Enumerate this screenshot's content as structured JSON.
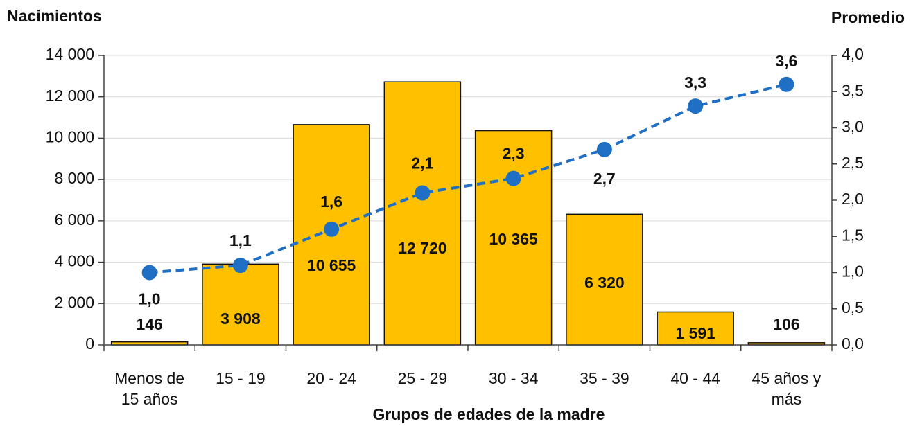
{
  "chart_data": {
    "type": "bar",
    "title_left": "Nacimientos",
    "title_right": "Promedio",
    "x_label": "Grupos de edades de la madre",
    "categories": [
      "Menos de 15 años",
      "15 - 19",
      "20 - 24",
      "25 - 29",
      "30 - 34",
      "35 - 39",
      "40 - 44",
      "45 años y más"
    ],
    "series": [
      {
        "type": "bar",
        "color": "#FFC000",
        "values": [
          146,
          3908,
          10655,
          12720,
          10365,
          6320,
          1591,
          106
        ],
        "value_labels": [
          "146",
          "3 908",
          "10 655",
          "12 720",
          "10 365",
          "6 320",
          "1 591",
          "106"
        ]
      },
      {
        "type": "line",
        "axis": "y2",
        "color": "#1F6FC5",
        "values": [
          1.0,
          1.1,
          1.6,
          2.1,
          2.3,
          2.7,
          3.3,
          3.6
        ],
        "value_labels": [
          "1,0",
          "1,1",
          "1,6",
          "2,1",
          "2,3",
          "2,7",
          "3,3",
          "3,6"
        ]
      }
    ],
    "ylim": [
      0,
      14000
    ],
    "yticks": [
      0,
      {
        "value": 2000,
        "label": "2 000"
      },
      {
        "value": 4000,
        "label": "4 000"
      },
      {
        "value": 6000,
        "label": "6 000"
      },
      {
        "value": 8000,
        "label": "8 000"
      },
      {
        "value": 10000,
        "label": "10 000"
      },
      {
        "value": 12000,
        "label": "12 000"
      },
      {
        "value": 14000,
        "label": "14 000"
      }
    ],
    "y2lim": [
      0,
      4
    ],
    "y2ticks": [
      {
        "value": 0,
        "label": "0,0"
      },
      {
        "value": 0.5,
        "label": "0,5"
      },
      {
        "value": 1,
        "label": "1,0"
      },
      {
        "value": 1.5,
        "label": "1,5"
      },
      {
        "value": 2,
        "label": "2,0"
      },
      {
        "value": 2.5,
        "label": "2,5"
      },
      {
        "value": 3,
        "label": "3,0"
      },
      {
        "value": 3.5,
        "label": "3,5"
      },
      {
        "value": 4,
        "label": "4,0"
      }
    ],
    "grid": true
  }
}
